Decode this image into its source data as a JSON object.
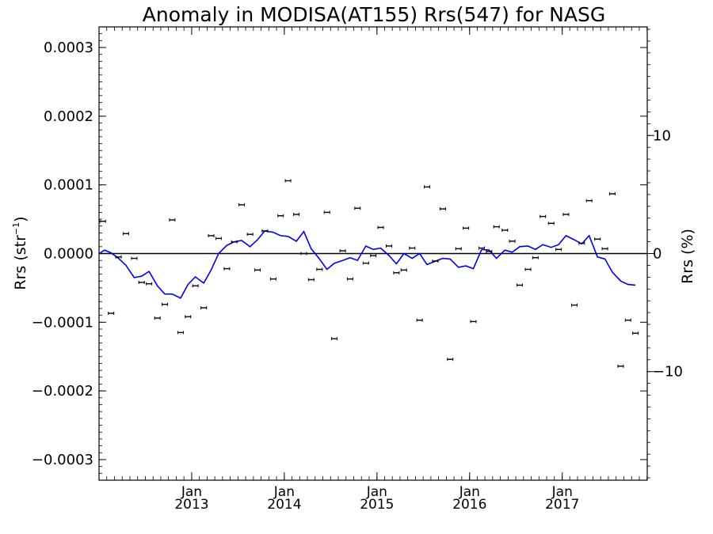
{
  "chart_data": {
    "type": "scatter",
    "title": "Anomaly in MODISA(AT155) Rrs(547) for NASG",
    "ylabel_left": "Rrs (str",
    "ylabel_left_sup": "−1",
    "ylabel_left_close": ")",
    "ylabel_right": "Rrs (%)",
    "xlim": [
      2012.0,
      2017.917
    ],
    "ylim": [
      -0.00033,
      0.00033
    ],
    "ylim_right": [
      -19.2,
      19.2
    ],
    "zero_line": true,
    "grid": false,
    "legend": "none",
    "colors": {
      "axes": "#000000",
      "line": "#0000ee",
      "points": "#000000",
      "zero_line": "#000000"
    },
    "y_ticks": [
      {
        "value": 0.0003,
        "label": "0.0003"
      },
      {
        "value": 0.0002,
        "label": "0.0002"
      },
      {
        "value": 0.0001,
        "label": "0.0001"
      },
      {
        "value": 0.0,
        "label": "0.0000"
      },
      {
        "value": -0.0001,
        "label": "−0.0001"
      },
      {
        "value": -0.0002,
        "label": "−0.0002"
      },
      {
        "value": -0.0003,
        "label": "−0.0003"
      }
    ],
    "y_right_ticks": [
      {
        "value": 10,
        "label": "10"
      },
      {
        "value": 0,
        "label": "0"
      },
      {
        "value": -10,
        "label": "−10"
      }
    ],
    "x_ticks": [
      {
        "value": 2013.0,
        "label_top": "Jan",
        "label_bottom": "2013"
      },
      {
        "value": 2014.0,
        "label_top": "Jan",
        "label_bottom": "2014"
      },
      {
        "value": 2015.0,
        "label_top": "Jan",
        "label_bottom": "2015"
      },
      {
        "value": 2016.0,
        "label_top": "Jan",
        "label_bottom": "2016"
      },
      {
        "value": 2017.0,
        "label_top": "Jan",
        "label_bottom": "2017"
      }
    ],
    "x_minor_step": 0.0833,
    "series": [
      {
        "kind": "points_with_errorbars",
        "points": [
          [
            2012.04,
            4.7e-05
          ],
          [
            2012.13,
            -8.7e-05
          ],
          [
            2012.21,
            -5e-06
          ],
          [
            2012.29,
            2.9e-05
          ],
          [
            2012.38,
            -7e-06
          ],
          [
            2012.46,
            -4.2e-05
          ],
          [
            2012.54,
            -4.4e-05
          ],
          [
            2012.63,
            -9.4e-05
          ],
          [
            2012.71,
            -7.4e-05
          ],
          [
            2012.79,
            4.9e-05
          ],
          [
            2012.88,
            -0.000115
          ],
          [
            2012.96,
            -9.2e-05
          ],
          [
            2013.04,
            -4.7e-05
          ],
          [
            2013.13,
            -7.9e-05
          ],
          [
            2013.21,
            2.6e-05
          ],
          [
            2013.29,
            2.2e-05
          ],
          [
            2013.38,
            -2.2e-05
          ],
          [
            2013.46,
            1.7e-05
          ],
          [
            2013.54,
            7.1e-05
          ],
          [
            2013.63,
            2.8e-05
          ],
          [
            2013.71,
            -2.4e-05
          ],
          [
            2013.79,
            3.3e-05
          ],
          [
            2013.88,
            -3.7e-05
          ],
          [
            2013.96,
            5.5e-05
          ],
          [
            2014.04,
            0.000106
          ],
          [
            2014.13,
            5.7e-05
          ],
          [
            2014.21,
            0.0
          ],
          [
            2014.29,
            -3.8e-05
          ],
          [
            2014.38,
            -2.3e-05
          ],
          [
            2014.46,
            6e-05
          ],
          [
            2014.54,
            -0.000124
          ],
          [
            2014.63,
            4e-06
          ],
          [
            2014.71,
            -3.7e-05
          ],
          [
            2014.79,
            6.6e-05
          ],
          [
            2014.88,
            -1.4e-05
          ],
          [
            2014.96,
            -3e-06
          ],
          [
            2015.04,
            3.8e-05
          ],
          [
            2015.13,
            1.1e-05
          ],
          [
            2015.21,
            -2.8e-05
          ],
          [
            2015.29,
            -2.4e-05
          ],
          [
            2015.38,
            8e-06
          ],
          [
            2015.46,
            -9.7e-05
          ],
          [
            2015.54,
            9.7e-05
          ],
          [
            2015.63,
            -1.1e-05
          ],
          [
            2015.71,
            6.5e-05
          ],
          [
            2015.79,
            -0.000154
          ],
          [
            2015.88,
            7e-06
          ],
          [
            2015.96,
            3.7e-05
          ],
          [
            2016.04,
            -9.9e-05
          ],
          [
            2016.13,
            8e-06
          ],
          [
            2016.21,
            3e-06
          ],
          [
            2016.29,
            3.9e-05
          ],
          [
            2016.38,
            3.4e-05
          ],
          [
            2016.46,
            1.8e-05
          ],
          [
            2016.54,
            -4.6e-05
          ],
          [
            2016.63,
            -2.3e-05
          ],
          [
            2016.71,
            -6e-06
          ],
          [
            2016.79,
            5.4e-05
          ],
          [
            2016.88,
            4.4e-05
          ],
          [
            2016.96,
            6e-06
          ],
          [
            2017.04,
            5.7e-05
          ],
          [
            2017.13,
            -7.5e-05
          ],
          [
            2017.21,
            1.5e-05
          ],
          [
            2017.29,
            7.7e-05
          ],
          [
            2017.38,
            2.1e-05
          ],
          [
            2017.46,
            7e-06
          ],
          [
            2017.54,
            8.7e-05
          ],
          [
            2017.63,
            -0.000164
          ],
          [
            2017.71,
            -9.7e-05
          ],
          [
            2017.79,
            -0.000116
          ]
        ]
      },
      {
        "kind": "line",
        "points": [
          [
            2012.0,
            0.0
          ],
          [
            2012.06,
            5e-06
          ],
          [
            2012.13,
            1e-06
          ],
          [
            2012.21,
            -7e-06
          ],
          [
            2012.29,
            -1.7e-05
          ],
          [
            2012.38,
            -3.5e-05
          ],
          [
            2012.46,
            -3.3e-05
          ],
          [
            2012.54,
            -2.6e-05
          ],
          [
            2012.63,
            -4.7e-05
          ],
          [
            2012.71,
            -5.9e-05
          ],
          [
            2012.79,
            -5.9e-05
          ],
          [
            2012.88,
            -6.5e-05
          ],
          [
            2012.96,
            -4.5e-05
          ],
          [
            2013.04,
            -3.4e-05
          ],
          [
            2013.13,
            -4.3e-05
          ],
          [
            2013.21,
            -2.4e-05
          ],
          [
            2013.29,
            0.0
          ],
          [
            2013.38,
            1.2e-05
          ],
          [
            2013.46,
            1.7e-05
          ],
          [
            2013.54,
            1.9e-05
          ],
          [
            2013.63,
            1e-05
          ],
          [
            2013.71,
            2e-05
          ],
          [
            2013.79,
            3.3e-05
          ],
          [
            2013.88,
            3.1e-05
          ],
          [
            2013.96,
            2.6e-05
          ],
          [
            2014.04,
            2.5e-05
          ],
          [
            2014.13,
            1.8e-05
          ],
          [
            2014.21,
            3.2e-05
          ],
          [
            2014.29,
            7e-06
          ],
          [
            2014.38,
            -8e-06
          ],
          [
            2014.46,
            -2.3e-05
          ],
          [
            2014.54,
            -1.4e-05
          ],
          [
            2014.63,
            -1e-05
          ],
          [
            2014.71,
            -6e-06
          ],
          [
            2014.79,
            -1e-05
          ],
          [
            2014.88,
            1.1e-05
          ],
          [
            2014.96,
            6e-06
          ],
          [
            2015.04,
            8e-06
          ],
          [
            2015.13,
            -3e-06
          ],
          [
            2015.21,
            -1.5e-05
          ],
          [
            2015.29,
            0.0
          ],
          [
            2015.38,
            -7e-06
          ],
          [
            2015.46,
            0.0
          ],
          [
            2015.54,
            -1.6e-05
          ],
          [
            2015.63,
            -1.1e-05
          ],
          [
            2015.71,
            -7e-06
          ],
          [
            2015.79,
            -8e-06
          ],
          [
            2015.88,
            -2e-05
          ],
          [
            2015.96,
            -1.8e-05
          ],
          [
            2016.04,
            -2.2e-05
          ],
          [
            2016.13,
            6e-06
          ],
          [
            2016.21,
            5e-06
          ],
          [
            2016.29,
            -7e-06
          ],
          [
            2016.38,
            5e-06
          ],
          [
            2016.46,
            2e-06
          ],
          [
            2016.54,
            1e-05
          ],
          [
            2016.63,
            1.1e-05
          ],
          [
            2016.71,
            6e-06
          ],
          [
            2016.79,
            1.3e-05
          ],
          [
            2016.88,
            9e-06
          ],
          [
            2016.96,
            1.3e-05
          ],
          [
            2017.04,
            2.6e-05
          ],
          [
            2017.13,
            2e-05
          ],
          [
            2017.21,
            1.4e-05
          ],
          [
            2017.29,
            2.6e-05
          ],
          [
            2017.38,
            -5e-06
          ],
          [
            2017.46,
            -8e-06
          ],
          [
            2017.54,
            -2.7e-05
          ],
          [
            2017.63,
            -4e-05
          ],
          [
            2017.71,
            -4.5e-05
          ],
          [
            2017.79,
            -4.6e-05
          ]
        ]
      }
    ]
  }
}
